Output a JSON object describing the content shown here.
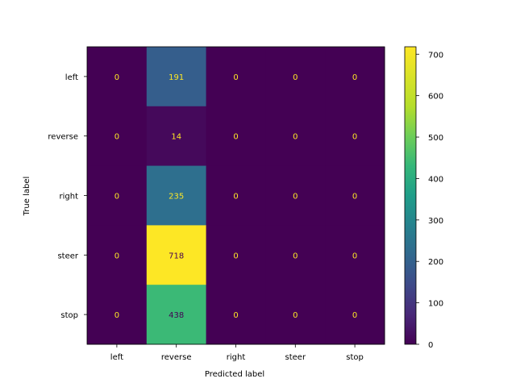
{
  "chart_data": {
    "type": "heatmap",
    "title": "",
    "xlabel": "Predicted label",
    "ylabel": "True label",
    "x_categories": [
      "left",
      "reverse",
      "right",
      "steer",
      "stop"
    ],
    "y_categories": [
      "left",
      "reverse",
      "right",
      "steer",
      "stop"
    ],
    "values": [
      [
        0,
        191,
        0,
        0,
        0
      ],
      [
        0,
        14,
        0,
        0,
        0
      ],
      [
        0,
        235,
        0,
        0,
        0
      ],
      [
        0,
        718,
        0,
        0,
        0
      ],
      [
        0,
        438,
        0,
        0,
        0
      ]
    ],
    "colormap": "viridis",
    "color_range": [
      0,
      718
    ],
    "colorbar": {
      "ticks": [
        0,
        100,
        200,
        300,
        400,
        500,
        600,
        700
      ]
    },
    "text_colors": {
      "on_dark": "#fde725",
      "on_light": "#440154"
    },
    "grid": false
  }
}
